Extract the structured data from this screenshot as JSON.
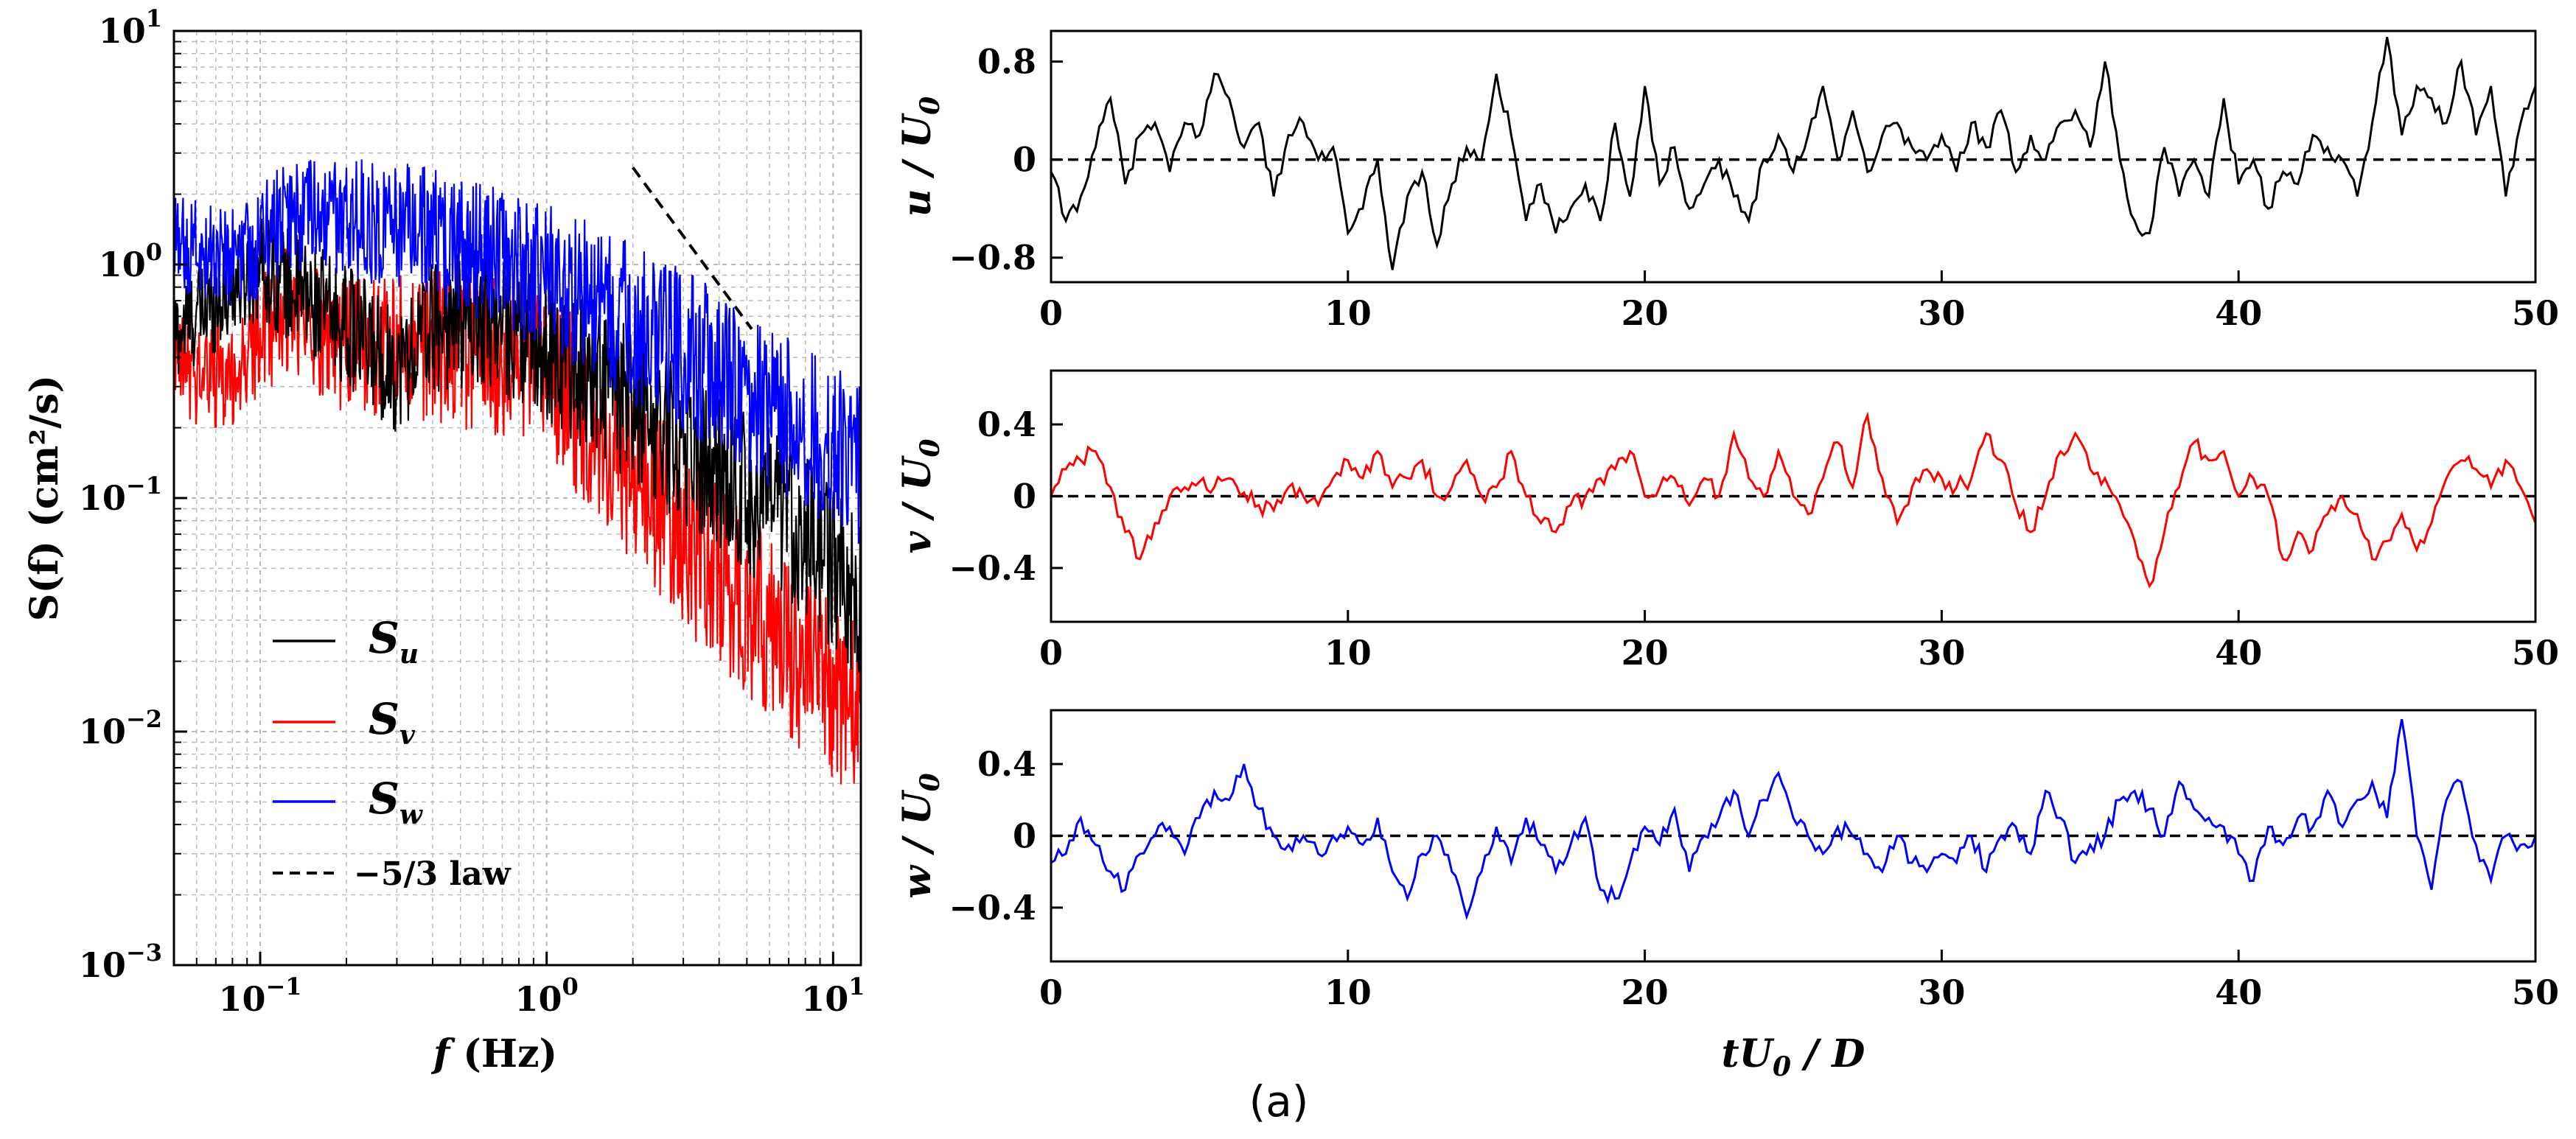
{
  "caption": "(a)",
  "chart_data": [
    {
      "type": "line",
      "scale": "log-log",
      "title": "",
      "ylabel": "S(f) (cm²/s)",
      "xlabel": "f (Hz)",
      "xlim": [
        0.05,
        12.5
      ],
      "ylim": [
        0.001,
        10
      ],
      "grid": true,
      "x_ticks": [
        {
          "value": 0.1,
          "base": "10",
          "exp": "−1"
        },
        {
          "value": 1,
          "base": "10",
          "exp": "0"
        },
        {
          "value": 10,
          "base": "10",
          "exp": "1"
        }
      ],
      "y_ticks": [
        {
          "value": 0.001,
          "base": "10",
          "exp": "−3"
        },
        {
          "value": 0.01,
          "base": "10",
          "exp": "−2"
        },
        {
          "value": 0.1,
          "base": "10",
          "exp": "−1"
        },
        {
          "value": 1,
          "base": "10",
          "exp": "0"
        },
        {
          "value": 10,
          "base": "10",
          "exp": "1"
        }
      ],
      "legend_placement": "lower-left",
      "series": [
        {
          "name": "S_u",
          "label_main": "S",
          "label_sub": "u",
          "color": "#000000",
          "base_points": [
            [
              0.05,
              0.5
            ],
            [
              0.1,
              1.0
            ],
            [
              0.2,
              0.55
            ],
            [
              0.3,
              0.35
            ],
            [
              0.4,
              0.55
            ],
            [
              0.6,
              0.6
            ],
            [
              1.0,
              0.45
            ],
            [
              2.0,
              0.25
            ],
            [
              4.0,
              0.13
            ],
            [
              8.0,
              0.07
            ],
            [
              12.5,
              0.035
            ]
          ],
          "noise": 0.22
        },
        {
          "name": "S_v",
          "label_main": "S",
          "label_sub": "v",
          "color": "#ff0000",
          "base_points": [
            [
              0.05,
              0.36
            ],
            [
              0.08,
              0.33
            ],
            [
              0.12,
              0.65
            ],
            [
              0.2,
              0.45
            ],
            [
              0.4,
              0.45
            ],
            [
              1.0,
              0.35
            ],
            [
              2.0,
              0.13
            ],
            [
              4.0,
              0.045
            ],
            [
              8.0,
              0.02
            ],
            [
              12.5,
              0.012
            ]
          ],
          "noise": 0.25
        },
        {
          "name": "S_w",
          "label_main": "S",
          "label_sub": "w",
          "color": "#0000ff",
          "base_points": [
            [
              0.05,
              1.2
            ],
            [
              0.09,
              1.1
            ],
            [
              0.12,
              1.6
            ],
            [
              0.3,
              1.5
            ],
            [
              1.0,
              0.9
            ],
            [
              2.0,
              0.55
            ],
            [
              4.0,
              0.35
            ],
            [
              8.0,
              0.2
            ],
            [
              12.5,
              0.14
            ]
          ],
          "noise": 0.22
        }
      ],
      "reference_line": {
        "name": "−5/3 law",
        "slope": -1.6667,
        "x_range": [
          2.0,
          5.2
        ],
        "y_at_start": 2.6,
        "color": "#000000",
        "dash": true
      }
    },
    {
      "type": "line",
      "title": "",
      "ylabel_main": "u",
      "ylabel_rest": " / U",
      "ylabel_sub": "0",
      "xlim": [
        0,
        50
      ],
      "ylim": [
        -1.0,
        1.05
      ],
      "x_ticks": [
        0,
        10,
        20,
        30,
        40,
        50
      ],
      "y_ticks": [
        {
          "value": 0.8,
          "label": "0.8"
        },
        {
          "value": 0,
          "label": "0"
        },
        {
          "value": -0.8,
          "label": "−0.8"
        }
      ],
      "zero_line": true,
      "series": {
        "name": "u/U0",
        "color": "#000000",
        "x": [
          0,
          0.5,
          1,
          1.5,
          2,
          2.5,
          3,
          3.5,
          4,
          4.5,
          5,
          5.5,
          6,
          6.5,
          7,
          7.5,
          8,
          8.5,
          9,
          9.5,
          10,
          10.5,
          11,
          11.5,
          12,
          12.5,
          13,
          13.5,
          14,
          14.5,
          15,
          15.5,
          16,
          16.5,
          17,
          17.5,
          18,
          18.5,
          19,
          19.5,
          20,
          20.5,
          21,
          21.5,
          22,
          22.5,
          23,
          23.5,
          24,
          24.5,
          25,
          25.5,
          26,
          26.5,
          27,
          27.5,
          28,
          28.5,
          29,
          29.5,
          30,
          30.5,
          31,
          31.5,
          32,
          32.5,
          33,
          33.5,
          34,
          34.5,
          35,
          35.5,
          36,
          36.5,
          37,
          37.5,
          38,
          38.5,
          39,
          39.5,
          40,
          40.5,
          41,
          41.5,
          42,
          42.5,
          43,
          43.5,
          44,
          44.5,
          45,
          45.5,
          46,
          46.5,
          47,
          47.5,
          48,
          48.5,
          49,
          49.5,
          50
        ],
        "y": [
          -0.1,
          -0.5,
          -0.3,
          0.1,
          0.5,
          -0.2,
          0.2,
          0.3,
          -0.1,
          0.3,
          0.2,
          0.7,
          0.5,
          0.1,
          0.3,
          -0.3,
          0.2,
          0.3,
          0.0,
          0.1,
          -0.6,
          -0.4,
          0.0,
          -0.9,
          -0.3,
          -0.1,
          -0.7,
          -0.2,
          0.1,
          0.0,
          0.7,
          0.2,
          -0.5,
          -0.2,
          -0.6,
          -0.4,
          -0.2,
          -0.5,
          0.3,
          -0.3,
          0.6,
          -0.2,
          0.1,
          -0.4,
          -0.2,
          0.0,
          -0.3,
          -0.5,
          0.0,
          0.2,
          -0.1,
          0.2,
          0.6,
          0.0,
          0.4,
          -0.1,
          0.2,
          0.3,
          0.1,
          0.0,
          0.2,
          -0.1,
          0.3,
          0.1,
          0.4,
          -0.1,
          0.2,
          0.0,
          0.3,
          0.4,
          0.1,
          0.8,
          0.0,
          -0.5,
          -0.6,
          0.1,
          -0.3,
          0.0,
          -0.3,
          0.5,
          -0.2,
          0.0,
          -0.4,
          -0.1,
          -0.2,
          0.2,
          0.1,
          0.0,
          -0.3,
          0.3,
          1.0,
          0.2,
          0.6,
          0.5,
          0.3,
          0.8,
          0.2,
          0.6,
          -0.3,
          0.3,
          0.6
        ]
      }
    },
    {
      "type": "line",
      "title": "",
      "ylabel_main": "v",
      "ylabel_rest": " / U",
      "ylabel_sub": "0",
      "xlim": [
        0,
        50
      ],
      "ylim": [
        -0.7,
        0.7
      ],
      "x_ticks": [
        0,
        10,
        20,
        30,
        40,
        50
      ],
      "y_ticks": [
        {
          "value": 0.4,
          "label": "0.4"
        },
        {
          "value": 0,
          "label": "0"
        },
        {
          "value": -0.4,
          "label": "−0.4"
        }
      ],
      "zero_line": true,
      "series": {
        "name": "v/U0",
        "color": "#ff0000",
        "x": [
          0,
          0.5,
          1,
          1.5,
          2,
          2.5,
          3,
          3.5,
          4,
          4.5,
          5,
          5.5,
          6,
          6.5,
          7,
          7.5,
          8,
          8.5,
          9,
          9.5,
          10,
          10.5,
          11,
          11.5,
          12,
          12.5,
          13,
          13.5,
          14,
          14.5,
          15,
          15.5,
          16,
          16.5,
          17,
          17.5,
          18,
          18.5,
          19,
          19.5,
          20,
          20.5,
          21,
          21.5,
          22,
          22.5,
          23,
          23.5,
          24,
          24.5,
          25,
          25.5,
          26,
          26.5,
          27,
          27.5,
          28,
          28.5,
          29,
          29.5,
          30,
          30.5,
          31,
          31.5,
          32,
          32.5,
          33,
          33.5,
          34,
          34.5,
          35,
          35.5,
          36,
          36.5,
          37,
          37.5,
          38,
          38.5,
          39,
          39.5,
          40,
          40.5,
          41,
          41.5,
          42,
          42.5,
          43,
          43.5,
          44,
          44.5,
          45,
          45.5,
          46,
          46.5,
          47,
          47.5,
          48,
          48.5,
          49,
          49.5,
          50
        ],
        "y": [
          0.0,
          0.15,
          0.2,
          0.25,
          0.05,
          -0.2,
          -0.35,
          -0.15,
          0.0,
          0.05,
          0.08,
          0.05,
          0.1,
          0.02,
          -0.05,
          -0.08,
          0.05,
          0.0,
          -0.05,
          0.1,
          0.2,
          0.1,
          0.25,
          0.05,
          0.1,
          0.2,
          0.0,
          0.05,
          0.2,
          0.0,
          0.05,
          0.25,
          0.0,
          -0.15,
          -0.2,
          -0.05,
          0.0,
          0.1,
          0.15,
          0.25,
          0.0,
          0.05,
          0.1,
          -0.05,
          0.1,
          0.0,
          0.35,
          0.1,
          0.0,
          0.25,
          0.0,
          -0.1,
          0.1,
          0.3,
          0.05,
          0.45,
          0.1,
          -0.15,
          0.05,
          0.15,
          0.1,
          0.05,
          0.1,
          0.35,
          0.2,
          -0.05,
          -0.2,
          0.0,
          0.25,
          0.35,
          0.15,
          0.1,
          -0.05,
          -0.25,
          -0.5,
          -0.2,
          0.05,
          0.3,
          0.2,
          0.25,
          0.0,
          0.1,
          0.0,
          -0.35,
          -0.2,
          -0.3,
          -0.1,
          0.0,
          -0.1,
          -0.35,
          -0.25,
          -0.1,
          -0.3,
          -0.15,
          0.1,
          0.2,
          0.15,
          0.05,
          0.2,
          0.05,
          -0.15
        ]
      }
    },
    {
      "type": "line",
      "title": "",
      "ylabel_main": "w",
      "ylabel_rest": " / U",
      "ylabel_sub": "0",
      "xlabel": "tU0 / D",
      "xlabel_main": "tU",
      "xlabel_sub": "0",
      "xlabel_rest": " / D",
      "xlim": [
        0,
        50
      ],
      "ylim": [
        -0.7,
        0.7
      ],
      "x_ticks": [
        0,
        10,
        20,
        30,
        40,
        50
      ],
      "y_ticks": [
        {
          "value": 0.4,
          "label": "0.4"
        },
        {
          "value": 0,
          "label": "0"
        },
        {
          "value": -0.4,
          "label": "−0.4"
        }
      ],
      "zero_line": true,
      "series": {
        "name": "w/U0",
        "color": "#0000ff",
        "x": [
          0,
          0.5,
          1,
          1.5,
          2,
          2.5,
          3,
          3.5,
          4,
          4.5,
          5,
          5.5,
          6,
          6.5,
          7,
          7.5,
          8,
          8.5,
          9,
          9.5,
          10,
          10.5,
          11,
          11.5,
          12,
          12.5,
          13,
          13.5,
          14,
          14.5,
          15,
          15.5,
          16,
          16.5,
          17,
          17.5,
          18,
          18.5,
          19,
          19.5,
          20,
          20.5,
          21,
          21.5,
          22,
          22.5,
          23,
          23.5,
          24,
          24.5,
          25,
          25.5,
          26,
          26.5,
          27,
          27.5,
          28,
          28.5,
          29,
          29.5,
          30,
          30.5,
          31,
          31.5,
          32,
          32.5,
          33,
          33.5,
          34,
          34.5,
          35,
          35.5,
          36,
          36.5,
          37,
          37.5,
          38,
          38.5,
          39,
          39.5,
          40,
          40.5,
          41,
          41.5,
          42,
          42.5,
          43,
          43.5,
          44,
          44.5,
          45,
          45.5,
          46,
          46.5,
          47,
          47.5,
          48,
          48.5,
          49,
          49.5,
          50
        ],
        "y": [
          -0.15,
          -0.1,
          0.1,
          -0.05,
          -0.2,
          -0.3,
          -0.1,
          0.0,
          0.05,
          -0.1,
          0.1,
          0.25,
          0.2,
          0.4,
          0.15,
          0.0,
          -0.05,
          0.0,
          -0.1,
          0.0,
          0.05,
          -0.05,
          0.1,
          -0.2,
          -0.35,
          -0.1,
          0.0,
          -0.2,
          -0.45,
          -0.2,
          0.05,
          -0.15,
          0.1,
          -0.05,
          -0.2,
          -0.05,
          0.1,
          -0.3,
          -0.35,
          -0.15,
          0.05,
          -0.05,
          0.15,
          -0.2,
          0.0,
          0.1,
          0.25,
          0.0,
          0.2,
          0.35,
          0.1,
          0.0,
          -0.1,
          0.05,
          0.0,
          -0.1,
          -0.2,
          0.0,
          -0.15,
          -0.2,
          -0.1,
          -0.15,
          0.0,
          -0.2,
          0.0,
          0.05,
          -0.1,
          0.25,
          0.1,
          -0.15,
          -0.05,
          0.0,
          0.2,
          0.25,
          0.15,
          0.0,
          0.3,
          0.15,
          0.1,
          0.05,
          -0.1,
          -0.25,
          0.05,
          -0.05,
          0.1,
          0.05,
          0.25,
          0.05,
          0.2,
          0.3,
          0.1,
          0.65,
          0.0,
          -0.3,
          0.2,
          0.3,
          -0.05,
          -0.25,
          0.0,
          -0.05,
          0.0
        ]
      }
    }
  ]
}
